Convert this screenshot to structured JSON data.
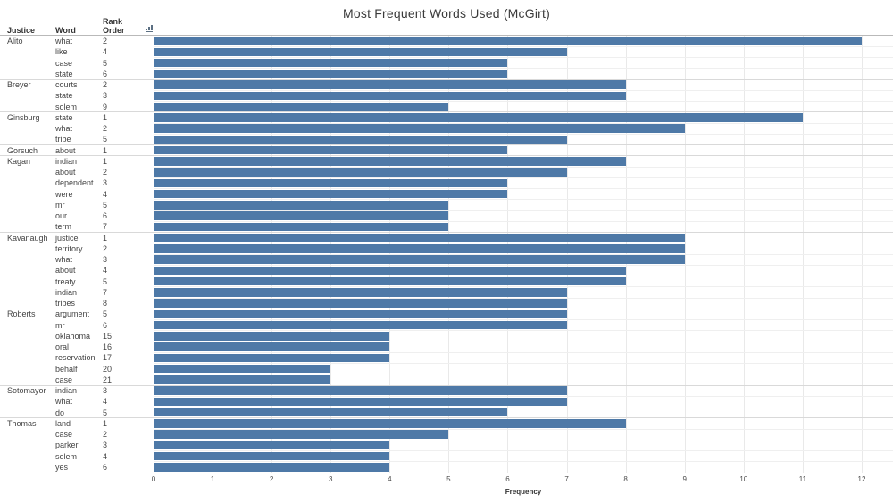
{
  "title": "Most Frequent Words Used (McGirt)",
  "columns": {
    "justice": "Justice",
    "word": "Word",
    "rank": "Rank Order"
  },
  "sort_icon": "sort-ascending-icon",
  "colors": {
    "bar": "#4e79a7",
    "gridline": "#e9e9e9",
    "group_separator": "#d9d9d9",
    "header_rule": "#b9b9b9"
  },
  "chart_data": {
    "type": "bar",
    "orientation": "horizontal",
    "title": "Most Frequent Words Used (McGirt)",
    "xlabel": "Frequency",
    "xlim": [
      0,
      12.53
    ],
    "ticks": [
      0,
      1,
      2,
      3,
      4,
      5,
      6,
      7,
      8,
      9,
      10,
      11,
      12
    ],
    "grid": true,
    "rows": [
      {
        "justice": "Alito",
        "word": "what",
        "rank": "2",
        "frequency": 12
      },
      {
        "justice": "Alito",
        "word": "like",
        "rank": "4",
        "frequency": 7
      },
      {
        "justice": "Alito",
        "word": "case",
        "rank": "5",
        "frequency": 6
      },
      {
        "justice": "Alito",
        "word": "state",
        "rank": "6",
        "frequency": 6
      },
      {
        "justice": "Breyer",
        "word": "courts",
        "rank": "2",
        "frequency": 8
      },
      {
        "justice": "Breyer",
        "word": "state",
        "rank": "3",
        "frequency": 8
      },
      {
        "justice": "Breyer",
        "word": "solem",
        "rank": "9",
        "frequency": 5
      },
      {
        "justice": "Ginsburg",
        "word": "state",
        "rank": "1",
        "frequency": 11
      },
      {
        "justice": "Ginsburg",
        "word": "what",
        "rank": "2",
        "frequency": 9
      },
      {
        "justice": "Ginsburg",
        "word": "tribe",
        "rank": "5",
        "frequency": 7
      },
      {
        "justice": "Gorsuch",
        "word": "about",
        "rank": "1",
        "frequency": 6
      },
      {
        "justice": "Kagan",
        "word": "indian",
        "rank": "1",
        "frequency": 8
      },
      {
        "justice": "Kagan",
        "word": "about",
        "rank": "2",
        "frequency": 7
      },
      {
        "justice": "Kagan",
        "word": "dependent",
        "rank": "3",
        "frequency": 6
      },
      {
        "justice": "Kagan",
        "word": "were",
        "rank": "4",
        "frequency": 6
      },
      {
        "justice": "Kagan",
        "word": "mr",
        "rank": "5",
        "frequency": 5
      },
      {
        "justice": "Kagan",
        "word": "our",
        "rank": "6",
        "frequency": 5
      },
      {
        "justice": "Kagan",
        "word": "term",
        "rank": "7",
        "frequency": 5
      },
      {
        "justice": "Kavanaugh",
        "word": "justice",
        "rank": "1",
        "frequency": 9
      },
      {
        "justice": "Kavanaugh",
        "word": "territory",
        "rank": "2",
        "frequency": 9
      },
      {
        "justice": "Kavanaugh",
        "word": "what",
        "rank": "3",
        "frequency": 9
      },
      {
        "justice": "Kavanaugh",
        "word": "about",
        "rank": "4",
        "frequency": 8
      },
      {
        "justice": "Kavanaugh",
        "word": "treaty",
        "rank": "5",
        "frequency": 8
      },
      {
        "justice": "Kavanaugh",
        "word": "indian",
        "rank": "7",
        "frequency": 7
      },
      {
        "justice": "Kavanaugh",
        "word": "tribes",
        "rank": "8",
        "frequency": 7
      },
      {
        "justice": "Roberts",
        "word": "argument",
        "rank": "5",
        "frequency": 7
      },
      {
        "justice": "Roberts",
        "word": "mr",
        "rank": "6",
        "frequency": 7
      },
      {
        "justice": "Roberts",
        "word": "oklahoma",
        "rank": "15",
        "frequency": 4
      },
      {
        "justice": "Roberts",
        "word": "oral",
        "rank": "16",
        "frequency": 4
      },
      {
        "justice": "Roberts",
        "word": "reservation",
        "rank": "17",
        "frequency": 4
      },
      {
        "justice": "Roberts",
        "word": "behalf",
        "rank": "20",
        "frequency": 3
      },
      {
        "justice": "Roberts",
        "word": "case",
        "rank": "21",
        "frequency": 3
      },
      {
        "justice": "Sotomayor",
        "word": "indian",
        "rank": "3",
        "frequency": 7
      },
      {
        "justice": "Sotomayor",
        "word": "what",
        "rank": "4",
        "frequency": 7
      },
      {
        "justice": "Sotomayor",
        "word": "do",
        "rank": "5",
        "frequency": 6
      },
      {
        "justice": "Thomas",
        "word": "land",
        "rank": "1",
        "frequency": 8
      },
      {
        "justice": "Thomas",
        "word": "case",
        "rank": "2",
        "frequency": 5
      },
      {
        "justice": "Thomas",
        "word": "parker",
        "rank": "3",
        "frequency": 4
      },
      {
        "justice": "Thomas",
        "word": "solem",
        "rank": "4",
        "frequency": 4
      },
      {
        "justice": "Thomas",
        "word": "yes",
        "rank": "6",
        "frequency": 4
      }
    ]
  }
}
